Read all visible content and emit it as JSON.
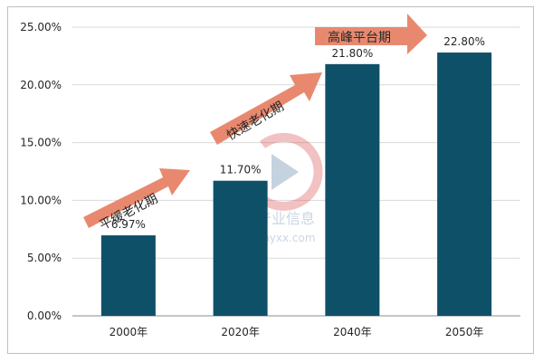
{
  "chart_data": {
    "type": "bar",
    "categories": [
      "2000年",
      "2020年",
      "2040年",
      "2050年"
    ],
    "values": [
      6.97,
      11.7,
      21.8,
      22.8
    ],
    "data_labels": [
      "6.97%",
      "11.70%",
      "21.80%",
      "22.80%"
    ],
    "ylim": [
      0,
      25
    ],
    "yticks": [
      "0.00%",
      "5.00%",
      "10.00%",
      "15.00%",
      "20.00%",
      "25.00%"
    ],
    "grid": true,
    "bar_color": "#0e5068",
    "annotations": [
      "平缓老化期",
      "快速老化期",
      "高峰平台期"
    ],
    "annotation_color": "#e8896f"
  },
  "watermark": {
    "text": "智研产业信息",
    "url": "www.chyxx.com"
  }
}
